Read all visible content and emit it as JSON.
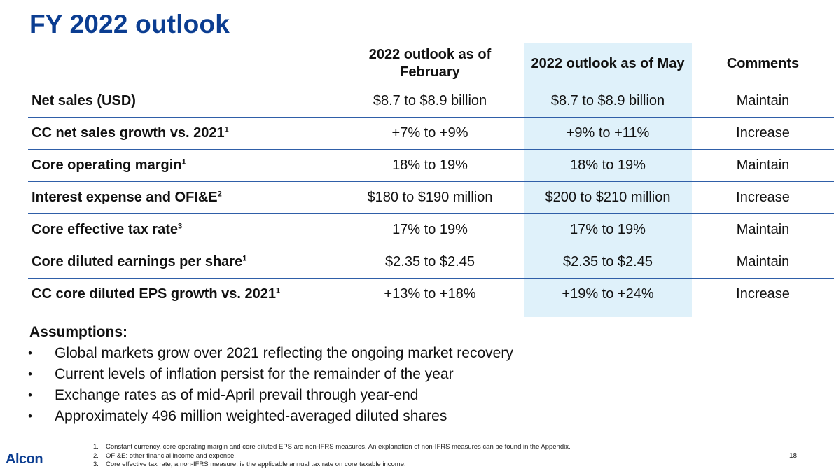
{
  "title": "FY 2022 outlook",
  "table": {
    "headers": [
      "",
      "2022 outlook as of February",
      "2022 outlook as of May",
      "Comments"
    ],
    "rows": [
      {
        "label": "Net sales (USD)",
        "sup": "",
        "feb": "$8.7 to $8.9 billion",
        "may": "$8.7 to $8.9 billion",
        "comment": "Maintain"
      },
      {
        "label": "CC net sales growth vs. 2021",
        "sup": "1",
        "feb": "+7% to +9%",
        "may": "+9% to +11%",
        "comment": "Increase"
      },
      {
        "label": "Core operating margin",
        "sup": "1",
        "feb": "18% to 19%",
        "may": "18% to 19%",
        "comment": "Maintain"
      },
      {
        "label": "Interest expense and OFI&E",
        "sup": "2",
        "feb": "$180 to $190 million",
        "may": "$200 to $210 million",
        "comment": "Increase"
      },
      {
        "label": "Core effective tax rate",
        "sup": "3",
        "feb": "17% to 19%",
        "may": "17% to 19%",
        "comment": "Maintain"
      },
      {
        "label": "Core diluted earnings per share",
        "sup": "1",
        "feb": "$2.35 to $2.45",
        "may": "$2.35 to $2.45",
        "comment": "Maintain"
      },
      {
        "label": "CC core diluted EPS growth vs. 2021",
        "sup": "1",
        "feb": "+13% to +18%",
        "may": "+19% to +24%",
        "comment": "Increase"
      }
    ]
  },
  "assumptions": {
    "title": "Assumptions:",
    "items": [
      "Global markets grow over 2021 reflecting the ongoing market recovery",
      "Current levels of inflation persist for the remainder of the year",
      "Exchange rates as of mid-April prevail through year-end",
      "Approximately 496 million weighted-averaged diluted shares"
    ]
  },
  "footnotes": [
    {
      "num": "1.",
      "text": "Constant currency, core operating margin and core diluted EPS are non-IFRS measures.  An explanation of non-IFRS measures can be found in the Appendix."
    },
    {
      "num": "2.",
      "text": "OFI&E: other financial income and expense."
    },
    {
      "num": "3.",
      "text": "Core effective tax rate, a non-IFRS measure, is the applicable annual tax rate on core taxable income."
    }
  ],
  "logo": "Alcon",
  "page_number": "18",
  "colors": {
    "title": "#0b3d91",
    "highlight_column": "#dff1fa",
    "rule": "#2f5fa8"
  }
}
